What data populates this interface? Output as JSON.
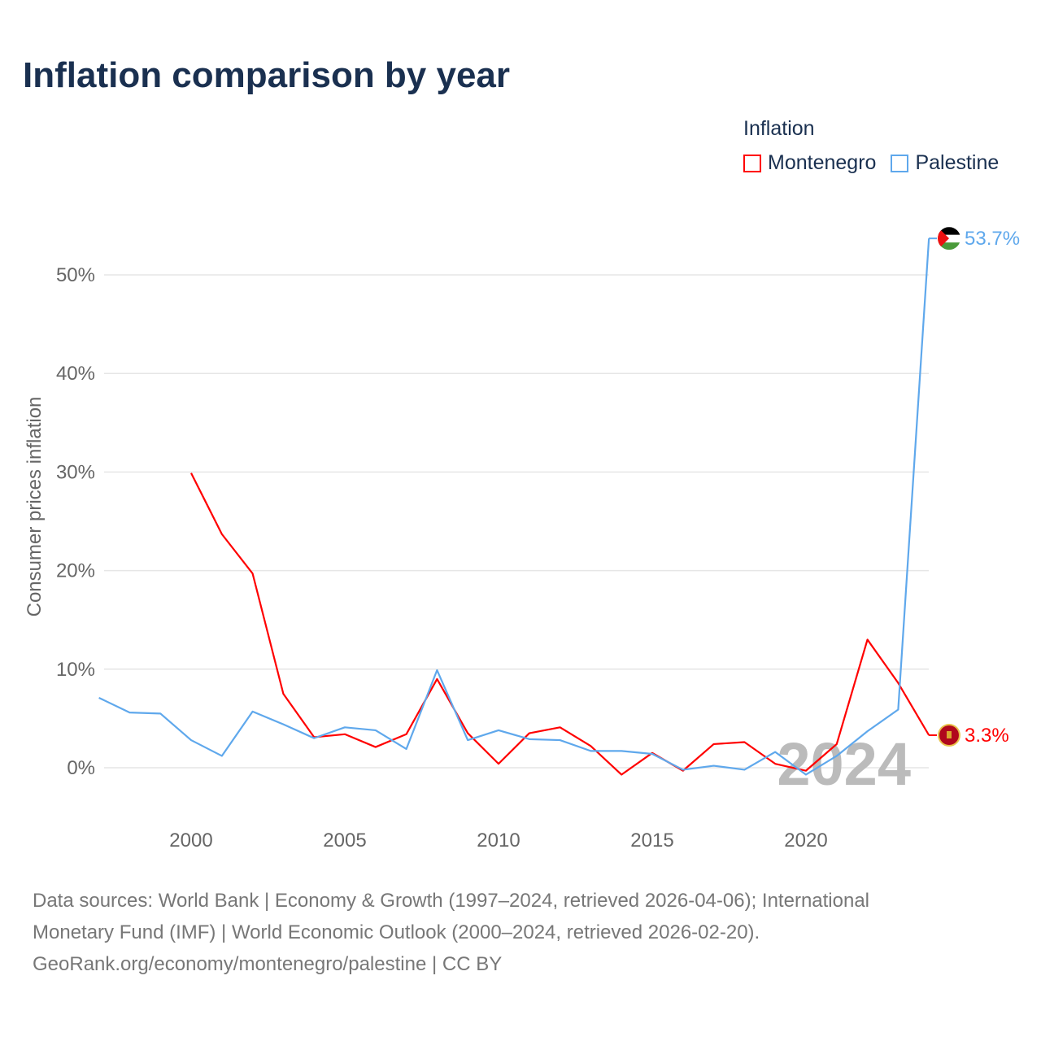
{
  "title": "Inflation comparison by year",
  "legend": {
    "title": "Inflation",
    "items": [
      "Montenegro",
      "Palestine"
    ]
  },
  "colors": {
    "Montenegro": "#ff0000",
    "Palestine": "#5fa8ec"
  },
  "watermark_year": "2024",
  "footer": [
    "Data sources: World Bank | Economy & Growth (1997–2024, retrieved 2026-04-06); International",
    "Monetary Fund (IMF) | World Economic Outlook (2000–2024, retrieved 2026-02-20).",
    "GeoRank.org/economy/montenegro/palestine | CC BY"
  ],
  "chart_data": {
    "type": "line",
    "ylabel": "Consumer prices inflation",
    "xlim": [
      1997,
      2024
    ],
    "ylim": [
      -5,
      55
    ],
    "xticks": [
      2000,
      2005,
      2010,
      2015,
      2020
    ],
    "xtick_labels": [
      "2000",
      "2005",
      "2010",
      "2015",
      "2020"
    ],
    "yticks": [
      0,
      10,
      20,
      30,
      40,
      50
    ],
    "ytick_labels": [
      "0%",
      "10%",
      "20%",
      "30%",
      "40%",
      "50%"
    ],
    "grid": true,
    "legend_position": "top-right",
    "series": [
      {
        "name": "Montenegro",
        "end_label": "3.3%",
        "x": [
          2000,
          2001,
          2002,
          2003,
          2004,
          2005,
          2006,
          2007,
          2008,
          2009,
          2010,
          2011,
          2012,
          2013,
          2014,
          2015,
          2016,
          2017,
          2018,
          2019,
          2020,
          2021,
          2022,
          2023,
          2024
        ],
        "values": [
          29.9,
          23.7,
          19.7,
          7.5,
          3.1,
          3.4,
          2.1,
          3.4,
          9.0,
          3.5,
          0.4,
          3.5,
          4.1,
          2.2,
          -0.7,
          1.5,
          -0.3,
          2.4,
          2.6,
          0.4,
          -0.3,
          2.4,
          13.0,
          8.6,
          3.3
        ]
      },
      {
        "name": "Palestine",
        "end_label": "53.7%",
        "x": [
          1997,
          1998,
          1999,
          2000,
          2001,
          2002,
          2003,
          2004,
          2005,
          2006,
          2007,
          2008,
          2009,
          2010,
          2011,
          2012,
          2013,
          2014,
          2015,
          2016,
          2017,
          2018,
          2019,
          2020,
          2021,
          2022,
          2023,
          2024
        ],
        "values": [
          7.1,
          5.6,
          5.5,
          2.8,
          1.2,
          5.7,
          4.4,
          3.0,
          4.1,
          3.8,
          1.9,
          9.9,
          2.8,
          3.8,
          2.9,
          2.8,
          1.7,
          1.7,
          1.4,
          -0.2,
          0.2,
          -0.2,
          1.6,
          -0.7,
          1.2,
          3.7,
          5.9,
          53.7
        ]
      }
    ]
  }
}
